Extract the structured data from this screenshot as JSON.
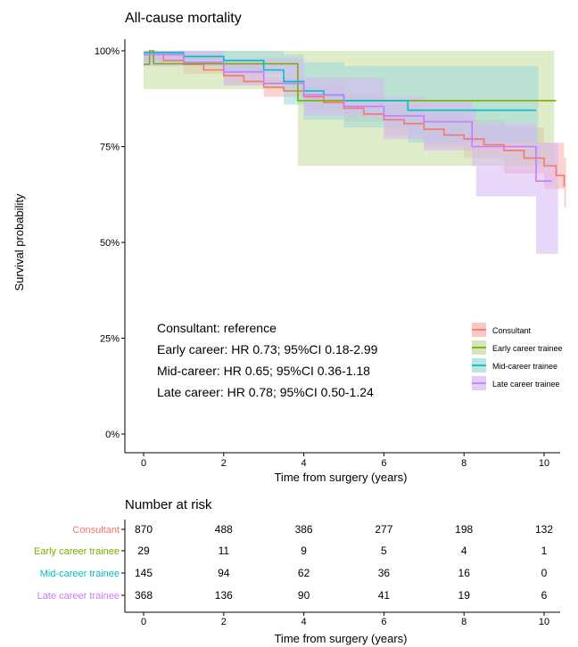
{
  "chart_data": {
    "type": "line",
    "title": "All-cause mortality",
    "xlabel": "Time from surgery (years)",
    "ylabel": "Survival probability",
    "xlim": [
      0,
      10.6
    ],
    "ylim": [
      0,
      1
    ],
    "x_ticks": [
      0,
      2,
      4,
      6,
      8,
      10
    ],
    "x_tick_labels": [
      "0",
      "2",
      "4",
      "6",
      "8",
      "10"
    ],
    "y_ticks": [
      0,
      0.25,
      0.5,
      0.75,
      1
    ],
    "y_tick_labels": [
      "0%",
      "25%",
      "50%",
      "75%",
      "100%"
    ],
    "grid": false,
    "legend_position": "right",
    "series": [
      {
        "name": "Consultant",
        "color": "#F8766D",
        "fill": "#F8AFA9",
        "points": [
          [
            0,
            0.99
          ],
          [
            0.5,
            0.975
          ],
          [
            1,
            0.965
          ],
          [
            1.5,
            0.95
          ],
          [
            2,
            0.935
          ],
          [
            2.5,
            0.92
          ],
          [
            3,
            0.905
          ],
          [
            3.5,
            0.895
          ],
          [
            4,
            0.88
          ],
          [
            4.5,
            0.865
          ],
          [
            5,
            0.85
          ],
          [
            5.5,
            0.835
          ],
          [
            6,
            0.82
          ],
          [
            6.5,
            0.81
          ],
          [
            7,
            0.795
          ],
          [
            7.5,
            0.78
          ],
          [
            8,
            0.77
          ],
          [
            8.5,
            0.755
          ],
          [
            9,
            0.74
          ],
          [
            9.5,
            0.72
          ],
          [
            10,
            0.7
          ],
          [
            10.3,
            0.675
          ],
          [
            10.5,
            0.645
          ]
        ],
        "ci": [
          [
            0,
            1.0,
            0.97
          ],
          [
            1,
            0.99,
            0.94
          ],
          [
            2,
            0.96,
            0.91
          ],
          [
            3,
            0.93,
            0.88
          ],
          [
            4,
            0.91,
            0.85
          ],
          [
            5,
            0.885,
            0.815
          ],
          [
            6,
            0.86,
            0.78
          ],
          [
            7,
            0.84,
            0.75
          ],
          [
            8,
            0.82,
            0.72
          ],
          [
            9,
            0.8,
            0.68
          ],
          [
            10,
            0.76,
            0.64
          ],
          [
            10.5,
            0.72,
            0.59
          ]
        ]
      },
      {
        "name": "Early career trainee",
        "color": "#7CAE00",
        "fill": "#C5DC9E",
        "points": [
          [
            0,
            0.965
          ],
          [
            0.15,
            1.0
          ],
          [
            0.25,
            0.966
          ],
          [
            3.85,
            0.966
          ],
          [
            3.85,
            0.87
          ],
          [
            10.3,
            0.87
          ]
        ],
        "ci": [
          [
            0,
            1.0,
            0.9
          ],
          [
            3.85,
            1.0,
            0.9
          ],
          [
            3.85,
            1.0,
            0.7
          ],
          [
            10.2,
            1.0,
            0.7
          ]
        ]
      },
      {
        "name": "Mid-career trainee",
        "color": "#00BFC4",
        "fill": "#9BD9D8",
        "points": [
          [
            0,
            0.995
          ],
          [
            1,
            0.985
          ],
          [
            2,
            0.975
          ],
          [
            3,
            0.95
          ],
          [
            3.5,
            0.92
          ],
          [
            4,
            0.895
          ],
          [
            4.5,
            0.885
          ],
          [
            5,
            0.87
          ],
          [
            6.6,
            0.87
          ],
          [
            6.6,
            0.845
          ],
          [
            9.8,
            0.845
          ]
        ],
        "ci": [
          [
            0,
            1.0,
            0.97
          ],
          [
            2,
            1.0,
            0.94
          ],
          [
            3.5,
            0.99,
            0.86
          ],
          [
            4,
            0.97,
            0.82
          ],
          [
            5,
            0.96,
            0.8
          ],
          [
            6.6,
            0.96,
            0.76
          ],
          [
            9.8,
            0.96,
            0.72
          ]
        ]
      },
      {
        "name": "Late career trainee",
        "color": "#C77CFF",
        "fill": "#D7B6F6",
        "points": [
          [
            0,
            0.99
          ],
          [
            1,
            0.97
          ],
          [
            2,
            0.945
          ],
          [
            3,
            0.915
          ],
          [
            4,
            0.885
          ],
          [
            5,
            0.855
          ],
          [
            6,
            0.83
          ],
          [
            6.8,
            0.83
          ],
          [
            7,
            0.815
          ],
          [
            8.2,
            0.815
          ],
          [
            8.2,
            0.75
          ],
          [
            9.8,
            0.75
          ],
          [
            9.8,
            0.66
          ],
          [
            10.2,
            0.66
          ]
        ],
        "ci": [
          [
            0,
            1.0,
            0.96
          ],
          [
            2,
            0.98,
            0.91
          ],
          [
            4,
            0.93,
            0.83
          ],
          [
            6,
            0.88,
            0.77
          ],
          [
            7,
            0.87,
            0.74
          ],
          [
            8.2,
            0.85,
            0.7
          ],
          [
            8.3,
            0.81,
            0.62
          ],
          [
            9.8,
            0.81,
            0.62
          ],
          [
            9.8,
            0.76,
            0.47
          ],
          [
            10.3,
            0.76,
            0.47
          ]
        ]
      }
    ],
    "annotations": [
      "Consultant: reference",
      "Early career: HR 0.73; 95%CI 0.18-2.99",
      "Mid-career: HR 0.65; 95%CI 0.36-1.18",
      "Late career: HR 0.78; 95%CI 0.50-1.24"
    ]
  },
  "risk_table": {
    "title": "Number at risk",
    "xlabel": "Time from surgery (years)",
    "times": [
      0,
      2,
      4,
      6,
      8,
      10
    ],
    "time_labels": [
      "0",
      "2",
      "4",
      "6",
      "8",
      "10"
    ],
    "rows": [
      {
        "label": "Consultant",
        "color": "#F8766D",
        "values": [
          "870",
          "488",
          "386",
          "277",
          "198",
          "132"
        ]
      },
      {
        "label": "Early career trainee",
        "color": "#7CAE00",
        "values": [
          "29",
          "11",
          "9",
          "5",
          "4",
          "1"
        ]
      },
      {
        "label": "Mid-career trainee",
        "color": "#00BFC4",
        "values": [
          "145",
          "94",
          "62",
          "36",
          "16",
          "0"
        ]
      },
      {
        "label": "Late career trainee",
        "color": "#C77CFF",
        "values": [
          "368",
          "136",
          "90",
          "41",
          "19",
          "6"
        ]
      }
    ]
  }
}
